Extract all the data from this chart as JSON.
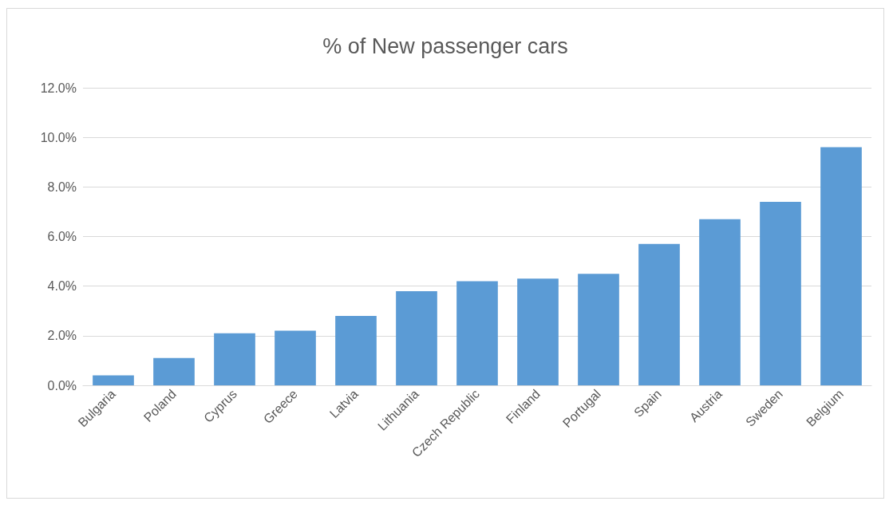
{
  "chart_data": {
    "type": "bar",
    "title": "% of New passenger cars",
    "categories": [
      "Bulgaria",
      "Poland",
      "Cyprus",
      "Greece",
      "Latvia",
      "Lithuania",
      "Czech Republic",
      "Finland",
      "Portugal",
      "Spain",
      "Austria",
      "Sweden",
      "Belgium"
    ],
    "values": [
      0.4,
      1.1,
      2.1,
      2.2,
      2.8,
      3.8,
      4.2,
      4.3,
      4.5,
      5.7,
      6.7,
      7.4,
      9.6
    ],
    "color": "#5b9bd5",
    "ylim": [
      0,
      12
    ],
    "yticks": [
      {
        "value": 0,
        "label": "0.0%"
      },
      {
        "value": 2,
        "label": "2.0%"
      },
      {
        "value": 4,
        "label": "4.0%"
      },
      {
        "value": 6,
        "label": "6.0%"
      },
      {
        "value": 8,
        "label": "8.0%"
      },
      {
        "value": 10,
        "label": "10.0%"
      },
      {
        "value": 12,
        "label": "12.0%"
      }
    ],
    "grid": "y"
  }
}
